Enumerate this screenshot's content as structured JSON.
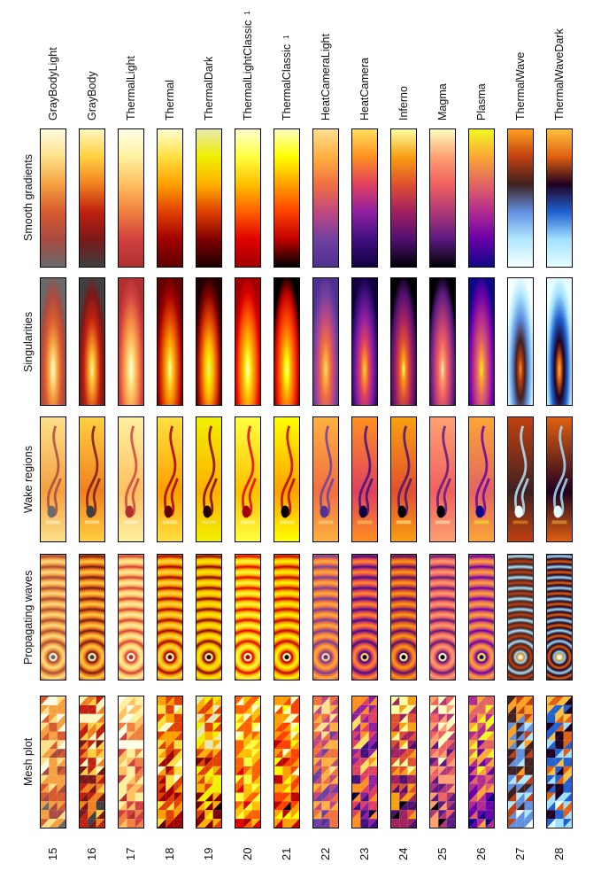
{
  "rows": [
    {
      "label": "Smooth gradients"
    },
    {
      "label": "Singularities"
    },
    {
      "label": "Wake regions"
    },
    {
      "label": "Propagating waves"
    },
    {
      "label": "Mesh plot"
    }
  ],
  "colormaps": [
    {
      "number": "15",
      "name": "GrayBodyLight",
      "sup": "",
      "colors": [
        "#fffbe0",
        "#fde08a",
        "#f5a040",
        "#d85a30",
        "#a84a40",
        "#6a6a6a"
      ]
    },
    {
      "number": "16",
      "name": "GrayBody",
      "sup": "",
      "colors": [
        "#fff8c0",
        "#ffd040",
        "#f08020",
        "#c02010",
        "#7a1818",
        "#404040"
      ]
    },
    {
      "number": "17",
      "name": "ThermalLight",
      "sup": "",
      "colors": [
        "#ffffe8",
        "#fff0a0",
        "#ffc060",
        "#f08040",
        "#d04040",
        "#b03030"
      ]
    },
    {
      "number": "18",
      "name": "Thermal",
      "sup": "",
      "colors": [
        "#ffffd0",
        "#ffe040",
        "#ffa000",
        "#e04000",
        "#a00000",
        "#600000"
      ]
    },
    {
      "number": "19",
      "name": "ThermalDark",
      "sup": "",
      "colors": [
        "#e8e8b0",
        "#f0f000",
        "#ffb000",
        "#e04000",
        "#800000",
        "#200000"
      ]
    },
    {
      "number": "20",
      "name": "ThermalLightClassic",
      "sup": "1",
      "colors": [
        "#ffffd0",
        "#ffff40",
        "#ffc000",
        "#ff6000",
        "#e00000",
        "#a00000"
      ]
    },
    {
      "number": "21",
      "name": "ThermalClassic",
      "sup": "1",
      "colors": [
        "#ffffc0",
        "#ffff00",
        "#ffa000",
        "#ff4000",
        "#c00000",
        "#000000"
      ]
    },
    {
      "number": "22",
      "name": "HeatCameraLight",
      "sup": "",
      "colors": [
        "#ffe090",
        "#ffb040",
        "#f07040",
        "#c04880",
        "#7040a0",
        "#503090"
      ]
    },
    {
      "number": "23",
      "name": "HeatCamera",
      "sup": "",
      "colors": [
        "#ffe060",
        "#ff9020",
        "#e04060",
        "#9020a0",
        "#401080",
        "#100040"
      ]
    },
    {
      "number": "24",
      "name": "Inferno",
      "sup": "",
      "colors": [
        "#fcffa4",
        "#f8a010",
        "#e05030",
        "#a02060",
        "#501070",
        "#000004"
      ]
    },
    {
      "number": "25",
      "name": "Magma",
      "sup": "",
      "colors": [
        "#fcfdbf",
        "#fea070",
        "#f06060",
        "#b03878",
        "#5a1a80",
        "#000004"
      ]
    },
    {
      "number": "26",
      "name": "Plasma",
      "sup": "",
      "colors": [
        "#f0f921",
        "#fca636",
        "#e16462",
        "#b12a90",
        "#6a00a8",
        "#0d0887"
      ]
    },
    {
      "number": "27",
      "name": "ThermalWave",
      "sup": "",
      "colors": [
        "#ffa020",
        "#c04010",
        "#402020",
        "#6090e0",
        "#b0e8ff",
        "#f4ffff"
      ]
    },
    {
      "number": "28",
      "name": "ThermalWaveDark",
      "sup": "",
      "colors": [
        "#ffc040",
        "#e06010",
        "#200020",
        "#2060d0",
        "#a0e0ff",
        "#e8ffff"
      ]
    }
  ]
}
